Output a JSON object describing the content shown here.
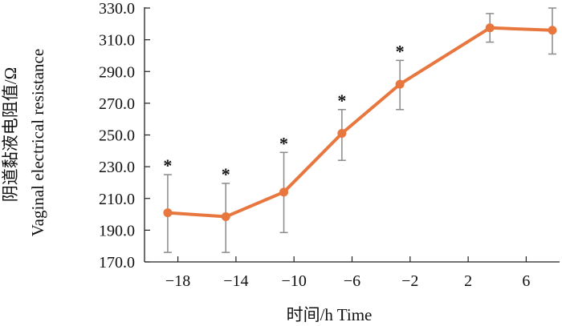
{
  "chart_data": {
    "type": "line",
    "xlabel": "时间/h Time",
    "ylabel_cn": "阴道黏液电阻值/Ω",
    "ylabel_en": "Vaginal electrical resistance",
    "x_ticks": [
      "−18",
      "−14",
      "−10",
      "−6",
      "−2",
      "2",
      "6"
    ],
    "y_ticks": [
      "170.0",
      "190.0",
      "210.0",
      "230.0",
      "250.0",
      "270.0",
      "290.0",
      "310.0",
      "330.0"
    ],
    "ylim": [
      170,
      330
    ],
    "xlim": [
      -20.3,
      8.3
    ],
    "series": [
      {
        "color": "#E8773F",
        "points": [
          {
            "x": -18.7,
            "y": 201,
            "err_low": 176,
            "err_high": 225,
            "star": "*"
          },
          {
            "x": -14.7,
            "y": 198.5,
            "err_low": 176,
            "err_high": 219.5,
            "star": "*"
          },
          {
            "x": -10.7,
            "y": 214,
            "err_low": 188.5,
            "err_high": 239,
            "star": "*"
          },
          {
            "x": -6.7,
            "y": 251,
            "err_low": 234,
            "err_high": 266,
            "star": "*"
          },
          {
            "x": -2.7,
            "y": 282,
            "err_low": 266,
            "err_high": 297,
            "star": "*"
          },
          {
            "x": 3.5,
            "y": 317.5,
            "err_low": 308.5,
            "err_high": 326.5,
            "star": ""
          },
          {
            "x": 7.8,
            "y": 316,
            "err_low": 301,
            "err_high": 330,
            "star": ""
          }
        ]
      }
    ]
  }
}
